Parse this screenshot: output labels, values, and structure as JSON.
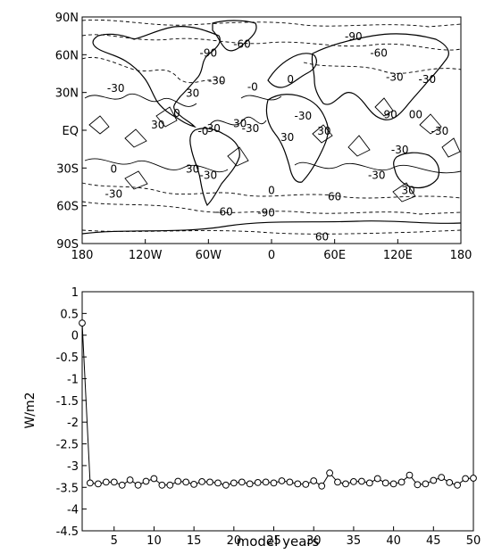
{
  "chart_data": [
    {
      "type": "contour_map",
      "xlim": [
        -180,
        180
      ],
      "ylim": [
        -90,
        90
      ],
      "x_ticks": [
        {
          "value": -180,
          "label": "180"
        },
        {
          "value": -120,
          "label": "120W"
        },
        {
          "value": -60,
          "label": "60W"
        },
        {
          "value": 0,
          "label": "0"
        },
        {
          "value": 60,
          "label": "60E"
        },
        {
          "value": 120,
          "label": "120E"
        },
        {
          "value": 180,
          "label": "180"
        }
      ],
      "y_ticks": [
        {
          "value": 90,
          "label": "90N"
        },
        {
          "value": 60,
          "label": "60N"
        },
        {
          "value": 30,
          "label": "30N"
        },
        {
          "value": 0,
          "label": "EQ"
        },
        {
          "value": -30,
          "label": "30S"
        },
        {
          "value": -60,
          "label": "60S"
        },
        {
          "value": -90,
          "label": "90S"
        }
      ],
      "contour_levels": [
        -90,
        -60,
        -30,
        0,
        30
      ],
      "negative_contours_dashed": true,
      "contour_labels": [
        {
          "lon": -28,
          "lat": 69,
          "text": "-60"
        },
        {
          "lon": 78,
          "lat": 75,
          "text": "-90"
        },
        {
          "lon": -60,
          "lat": 62,
          "text": "-90"
        },
        {
          "lon": 102,
          "lat": 62,
          "text": "-60"
        },
        {
          "lon": -148,
          "lat": 34,
          "text": "-30"
        },
        {
          "lon": -52,
          "lat": 40,
          "text": "-30"
        },
        {
          "lon": -75,
          "lat": 30,
          "text": "30"
        },
        {
          "lon": -18,
          "lat": 35,
          "text": "-0"
        },
        {
          "lon": 18,
          "lat": 41,
          "text": "0"
        },
        {
          "lon": 117,
          "lat": 43,
          "text": "-30"
        },
        {
          "lon": 148,
          "lat": 41,
          "text": "-30"
        },
        {
          "lon": -108,
          "lat": 5,
          "text": "30"
        },
        {
          "lon": -90,
          "lat": 14,
          "text": "0"
        },
        {
          "lon": -55,
          "lat": 2,
          "text": "30"
        },
        {
          "lon": -65,
          "lat": 0,
          "text": "-0"
        },
        {
          "lon": 30,
          "lat": 12,
          "text": "-30"
        },
        {
          "lon": 113,
          "lat": 13,
          "text": "90"
        },
        {
          "lon": 137,
          "lat": 13,
          "text": "00"
        },
        {
          "lon": -20,
          "lat": 2,
          "text": "-30"
        },
        {
          "lon": -30,
          "lat": 6,
          "text": "30"
        },
        {
          "lon": -75,
          "lat": -30,
          "text": "30"
        },
        {
          "lon": -60,
          "lat": -35,
          "text": "-30"
        },
        {
          "lon": 15,
          "lat": -5,
          "text": "30"
        },
        {
          "lon": 50,
          "lat": 0,
          "text": "30"
        },
        {
          "lon": 122,
          "lat": -15,
          "text": "-30"
        },
        {
          "lon": 100,
          "lat": -35,
          "text": "-30"
        },
        {
          "lon": 160,
          "lat": 0,
          "text": "-30"
        },
        {
          "lon": -150,
          "lat": -30,
          "text": "0"
        },
        {
          "lon": -150,
          "lat": -50,
          "text": "-30"
        },
        {
          "lon": 0,
          "lat": -47,
          "text": "0"
        },
        {
          "lon": -45,
          "lat": -64,
          "text": "-60"
        },
        {
          "lon": 60,
          "lat": -52,
          "text": "60"
        },
        {
          "lon": 130,
          "lat": -47,
          "text": "30"
        },
        {
          "lon": -5,
          "lat": -65,
          "text": "-90"
        },
        {
          "lon": 48,
          "lat": -84,
          "text": "60"
        }
      ]
    },
    {
      "type": "line",
      "xlabel": "model years",
      "ylabel": "W/m2",
      "xlim": [
        1,
        50
      ],
      "ylim": [
        -4.5,
        1
      ],
      "x_ticks": [
        5,
        10,
        15,
        20,
        25,
        30,
        35,
        40,
        45,
        50
      ],
      "y_ticks": [
        {
          "value": 1,
          "label": "1"
        },
        {
          "value": 0.5,
          "label": "0.5"
        },
        {
          "value": 0,
          "label": "0"
        },
        {
          "value": -0.5,
          "label": "-0.5"
        },
        {
          "value": -1,
          "label": "-1"
        },
        {
          "value": -1.5,
          "label": "-1.5"
        },
        {
          "value": -2,
          "label": "-2"
        },
        {
          "value": -2.5,
          "label": "-2.5"
        },
        {
          "value": -3,
          "label": "-3"
        },
        {
          "value": -3.5,
          "label": "-3.5"
        },
        {
          "value": -4,
          "label": "-4"
        },
        {
          "value": -4.5,
          "label": "-4.5"
        }
      ],
      "marker": "open-circle",
      "series": [
        {
          "x": [
            1,
            2,
            3,
            4,
            5,
            6,
            7,
            8,
            9,
            10,
            11,
            12,
            13,
            14,
            15,
            16,
            17,
            18,
            19,
            20,
            21,
            22,
            23,
            24,
            25,
            26,
            27,
            28,
            29,
            30,
            31,
            32,
            33,
            34,
            35,
            36,
            37,
            38,
            39,
            40,
            41,
            42,
            43,
            44,
            45,
            46,
            47,
            48,
            49,
            50
          ],
          "values": [
            0.28,
            -3.4,
            -3.42,
            -3.38,
            -3.38,
            -3.45,
            -3.33,
            -3.45,
            -3.36,
            -3.3,
            -3.45,
            -3.45,
            -3.36,
            -3.38,
            -3.43,
            -3.37,
            -3.38,
            -3.4,
            -3.45,
            -3.4,
            -3.38,
            -3.42,
            -3.39,
            -3.38,
            -3.4,
            -3.35,
            -3.38,
            -3.42,
            -3.43,
            -3.35,
            -3.47,
            -3.17,
            -3.38,
            -3.42,
            -3.37,
            -3.36,
            -3.4,
            -3.3,
            -3.4,
            -3.42,
            -3.38,
            -3.22,
            -3.44,
            -3.42,
            -3.34,
            -3.27,
            -3.39,
            -3.45,
            -3.3,
            -3.29
          ]
        }
      ]
    }
  ]
}
